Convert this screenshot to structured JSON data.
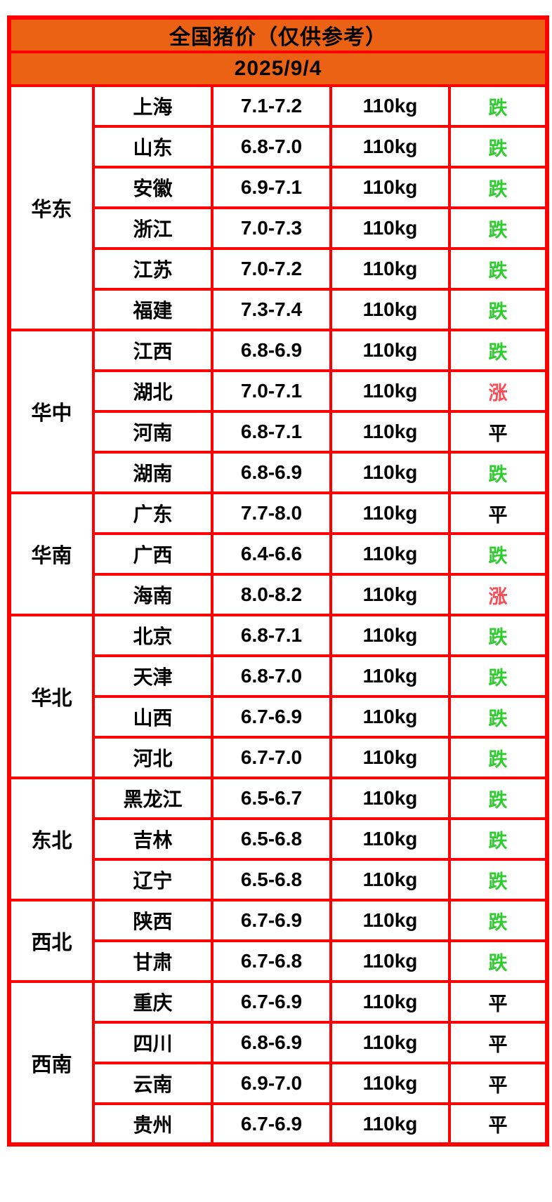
{
  "chart_data": {
    "type": "table",
    "title": "全国猪价（仅供参考）",
    "date": "2025/9/4",
    "trend_labels": {
      "down": "跌",
      "up": "涨",
      "flat": "平"
    },
    "regions": [
      {
        "name": "华东",
        "rows": [
          {
            "province": "上海",
            "price": "7.1-7.2",
            "weight": "110kg",
            "trend": "跌",
            "trend_dir": "down"
          },
          {
            "province": "山东",
            "price": "6.8-7.0",
            "weight": "110kg",
            "trend": "跌",
            "trend_dir": "down"
          },
          {
            "province": "安徽",
            "price": "6.9-7.1",
            "weight": "110kg",
            "trend": "跌",
            "trend_dir": "down"
          },
          {
            "province": "浙江",
            "price": "7.0-7.3",
            "weight": "110kg",
            "trend": "跌",
            "trend_dir": "down"
          },
          {
            "province": "江苏",
            "price": "7.0-7.2",
            "weight": "110kg",
            "trend": "跌",
            "trend_dir": "down"
          },
          {
            "province": "福建",
            "price": "7.3-7.4",
            "weight": "110kg",
            "trend": "跌",
            "trend_dir": "down"
          }
        ]
      },
      {
        "name": "华中",
        "rows": [
          {
            "province": "江西",
            "price": "6.8-6.9",
            "weight": "110kg",
            "trend": "跌",
            "trend_dir": "down"
          },
          {
            "province": "湖北",
            "price": "7.0-7.1",
            "weight": "110kg",
            "trend": "涨",
            "trend_dir": "up"
          },
          {
            "province": "河南",
            "price": "6.8-7.1",
            "weight": "110kg",
            "trend": "平",
            "trend_dir": "flat"
          },
          {
            "province": "湖南",
            "price": "6.8-6.9",
            "weight": "110kg",
            "trend": "跌",
            "trend_dir": "down"
          }
        ]
      },
      {
        "name": "华南",
        "rows": [
          {
            "province": "广东",
            "price": "7.7-8.0",
            "weight": "110kg",
            "trend": "平",
            "trend_dir": "flat"
          },
          {
            "province": "广西",
            "price": "6.4-6.6",
            "weight": "110kg",
            "trend": "跌",
            "trend_dir": "down"
          },
          {
            "province": "海南",
            "price": "8.0-8.2",
            "weight": "110kg",
            "trend": "涨",
            "trend_dir": "up"
          }
        ]
      },
      {
        "name": "华北",
        "rows": [
          {
            "province": "北京",
            "price": "6.8-7.1",
            "weight": "110kg",
            "trend": "跌",
            "trend_dir": "down"
          },
          {
            "province": "天津",
            "price": "6.8-7.0",
            "weight": "110kg",
            "trend": "跌",
            "trend_dir": "down"
          },
          {
            "province": "山西",
            "price": "6.7-6.9",
            "weight": "110kg",
            "trend": "跌",
            "trend_dir": "down"
          },
          {
            "province": "河北",
            "price": "6.7-7.0",
            "weight": "110kg",
            "trend": "跌",
            "trend_dir": "down"
          }
        ]
      },
      {
        "name": "东北",
        "rows": [
          {
            "province": "黑龙江",
            "price": "6.5-6.7",
            "weight": "110kg",
            "trend": "跌",
            "trend_dir": "down"
          },
          {
            "province": "吉林",
            "price": "6.5-6.8",
            "weight": "110kg",
            "trend": "跌",
            "trend_dir": "down"
          },
          {
            "province": "辽宁",
            "price": "6.5-6.8",
            "weight": "110kg",
            "trend": "跌",
            "trend_dir": "down"
          }
        ]
      },
      {
        "name": "西北",
        "rows": [
          {
            "province": "陕西",
            "price": "6.7-6.9",
            "weight": "110kg",
            "trend": "跌",
            "trend_dir": "down"
          },
          {
            "province": "甘肃",
            "price": "6.7-6.8",
            "weight": "110kg",
            "trend": "跌",
            "trend_dir": "down"
          }
        ]
      },
      {
        "name": "西南",
        "rows": [
          {
            "province": "重庆",
            "price": "6.7-6.9",
            "weight": "110kg",
            "trend": "平",
            "trend_dir": "flat"
          },
          {
            "province": "四川",
            "price": "6.8-6.9",
            "weight": "110kg",
            "trend": "平",
            "trend_dir": "flat"
          },
          {
            "province": "云南",
            "price": "6.9-7.0",
            "weight": "110kg",
            "trend": "平",
            "trend_dir": "flat"
          },
          {
            "province": "贵州",
            "price": "6.7-6.9",
            "weight": "110kg",
            "trend": "平",
            "trend_dir": "flat"
          }
        ]
      }
    ]
  },
  "theme": {
    "header_bg": "#EB6214",
    "border_color": "#FF0000",
    "trend_down_color": "#2FCC2F",
    "trend_up_color": "#FB4B55",
    "trend_flat_color": "#000000"
  }
}
